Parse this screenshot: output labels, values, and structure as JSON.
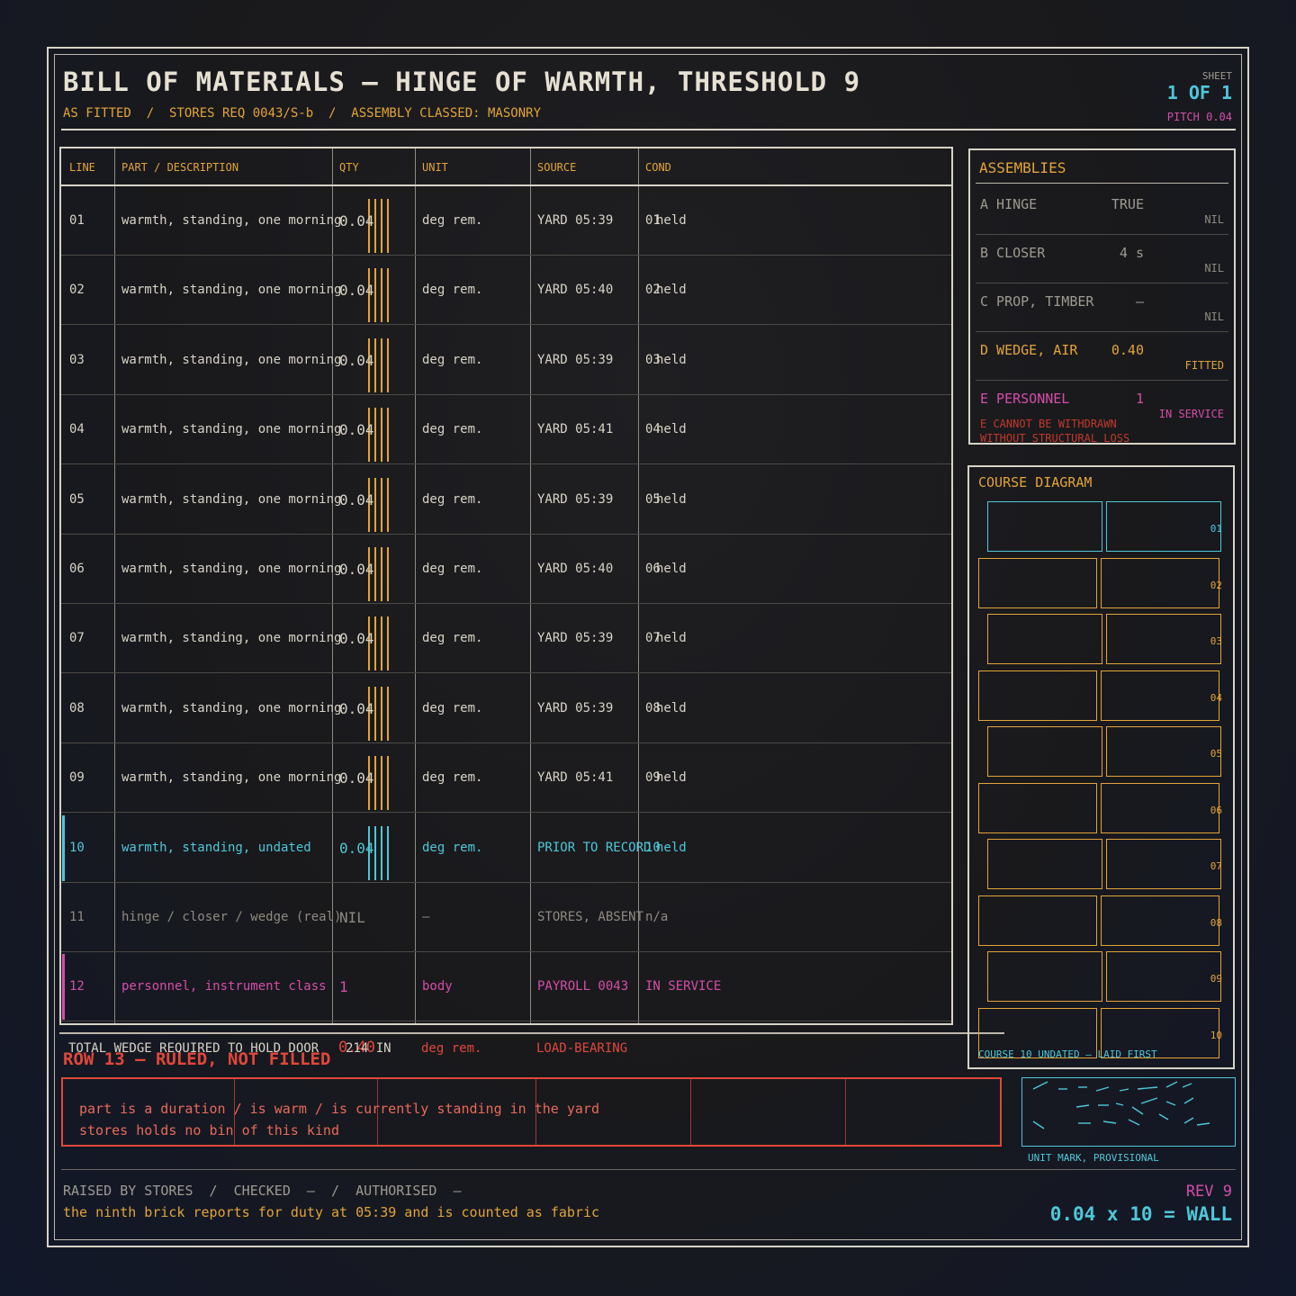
{
  "header": {
    "title": "BILL OF MATERIALS — HINGE OF WARMTH, THRESHOLD 9",
    "subtitle": "AS FITTED  /  STORES REQ 0043/S-b  /  ASSEMBLY CLASSED: MASONRY",
    "sheet_label": "SHEET",
    "sheet_value": "1 OF 1",
    "pitch": "PITCH 0.04"
  },
  "table": {
    "columns": [
      "LINE",
      "PART / DESCRIPTION",
      "QTY",
      "UNIT",
      "SOURCE",
      "COND"
    ],
    "rows": [
      {
        "line": "01",
        "part": "warmth, standing, one morning",
        "qty": "0.04",
        "unit": "deg rem.",
        "source": "YARD 05:39",
        "cond": "01",
        "cond2": "held",
        "style": "normal"
      },
      {
        "line": "02",
        "part": "warmth, standing, one morning",
        "qty": "0.04",
        "unit": "deg rem.",
        "source": "YARD 05:40",
        "cond": "02",
        "cond2": "held",
        "style": "normal"
      },
      {
        "line": "03",
        "part": "warmth, standing, one morning",
        "qty": "0.04",
        "unit": "deg rem.",
        "source": "YARD 05:39",
        "cond": "03",
        "cond2": "held",
        "style": "normal"
      },
      {
        "line": "04",
        "part": "warmth, standing, one morning",
        "qty": "0.04",
        "unit": "deg rem.",
        "source": "YARD 05:41",
        "cond": "04",
        "cond2": "held",
        "style": "normal"
      },
      {
        "line": "05",
        "part": "warmth, standing, one morning",
        "qty": "0.04",
        "unit": "deg rem.",
        "source": "YARD 05:39",
        "cond": "05",
        "cond2": "held",
        "style": "normal"
      },
      {
        "line": "06",
        "part": "warmth, standing, one morning",
        "qty": "0.04",
        "unit": "deg rem.",
        "source": "YARD 05:40",
        "cond": "06",
        "cond2": "held",
        "style": "normal"
      },
      {
        "line": "07",
        "part": "warmth, standing, one morning",
        "qty": "0.04",
        "unit": "deg rem.",
        "source": "YARD 05:39",
        "cond": "07",
        "cond2": "held",
        "style": "normal"
      },
      {
        "line": "08",
        "part": "warmth, standing, one morning",
        "qty": "0.04",
        "unit": "deg rem.",
        "source": "YARD 05:39",
        "cond": "08",
        "cond2": "held",
        "style": "normal"
      },
      {
        "line": "09",
        "part": "warmth, standing, one morning",
        "qty": "0.04",
        "unit": "deg rem.",
        "source": "YARD 05:41",
        "cond": "09",
        "cond2": "held",
        "style": "normal"
      },
      {
        "line": "10",
        "part": "warmth, standing, undated",
        "qty": "0.04",
        "unit": "deg rem.",
        "source": "PRIOR TO RECORD",
        "cond": "10",
        "cond2": "held",
        "style": "cyan"
      },
      {
        "line": "11",
        "part": "hinge / closer / wedge (real)",
        "qty": "NIL",
        "unit": "—",
        "source": "STORES, ABSENT",
        "cond": "n/a",
        "cond2": "",
        "style": "dim"
      },
      {
        "line": "12",
        "part": "personnel, instrument class",
        "qty": "1",
        "unit": "body",
        "source": "PAYROLL 0043",
        "cond": "IN SERVICE",
        "cond2": "",
        "style": "magenta"
      }
    ],
    "total": {
      "label": "TOTAL WEDGE REQUIRED TO HOLD DOOR",
      "qty": "0.40",
      "qty_overprint": "214 IN",
      "unit": "deg rem.",
      "source": "LOAD-BEARING"
    }
  },
  "row13": {
    "title": "ROW 13 — RULED, NOT FILLED",
    "lines": [
      "part is a duration / is warm / is currently standing in the yard",
      "stores holds no bin of this kind"
    ]
  },
  "unit_mark": {
    "label": "UNIT MARK, PROVISIONAL"
  },
  "assemblies": {
    "title": "ASSEMBLIES",
    "items": [
      {
        "name": "A HINGE",
        "value": "TRUE",
        "status": "NIL",
        "tone": "dim"
      },
      {
        "name": "B CLOSER",
        "value": "4 s",
        "status": "NIL",
        "tone": "dim"
      },
      {
        "name": "C PROP, TIMBER",
        "value": "—",
        "status": "NIL",
        "tone": "dim"
      },
      {
        "name": "D WEDGE, AIR",
        "value": "0.40",
        "status": "FITTED",
        "tone": "amber"
      },
      {
        "name": "E PERSONNEL",
        "value": "1",
        "status": "IN SERVICE",
        "tone": "magenta"
      }
    ],
    "warning_1": "E CANNOT BE WITHDRAWN",
    "warning_2": "WITHOUT STRUCTURAL LOSS"
  },
  "course_diagram": {
    "title": "COURSE DIAGRAM",
    "courses": [
      "01",
      "02",
      "03",
      "04",
      "05",
      "06",
      "07",
      "08",
      "09",
      "10"
    ],
    "highlight_course": "01",
    "note": "COURSE 10 UNDATED — LAID FIRST"
  },
  "footer": {
    "raised": "RAISED BY STORES  /  CHECKED  —  /  AUTHORISED  —",
    "ninth": "the ninth brick reports for duty at 05:39 and is counted as fabric",
    "rev": "REV 9",
    "equation": "0.04 x 10 = WALL"
  },
  "colors": {
    "amber": "#e2a43a",
    "cyan": "#4fc7d8",
    "magenta": "#d44ea8",
    "red": "#e0483a",
    "ink": "#d8d3c6",
    "dim": "#9e9a90"
  }
}
